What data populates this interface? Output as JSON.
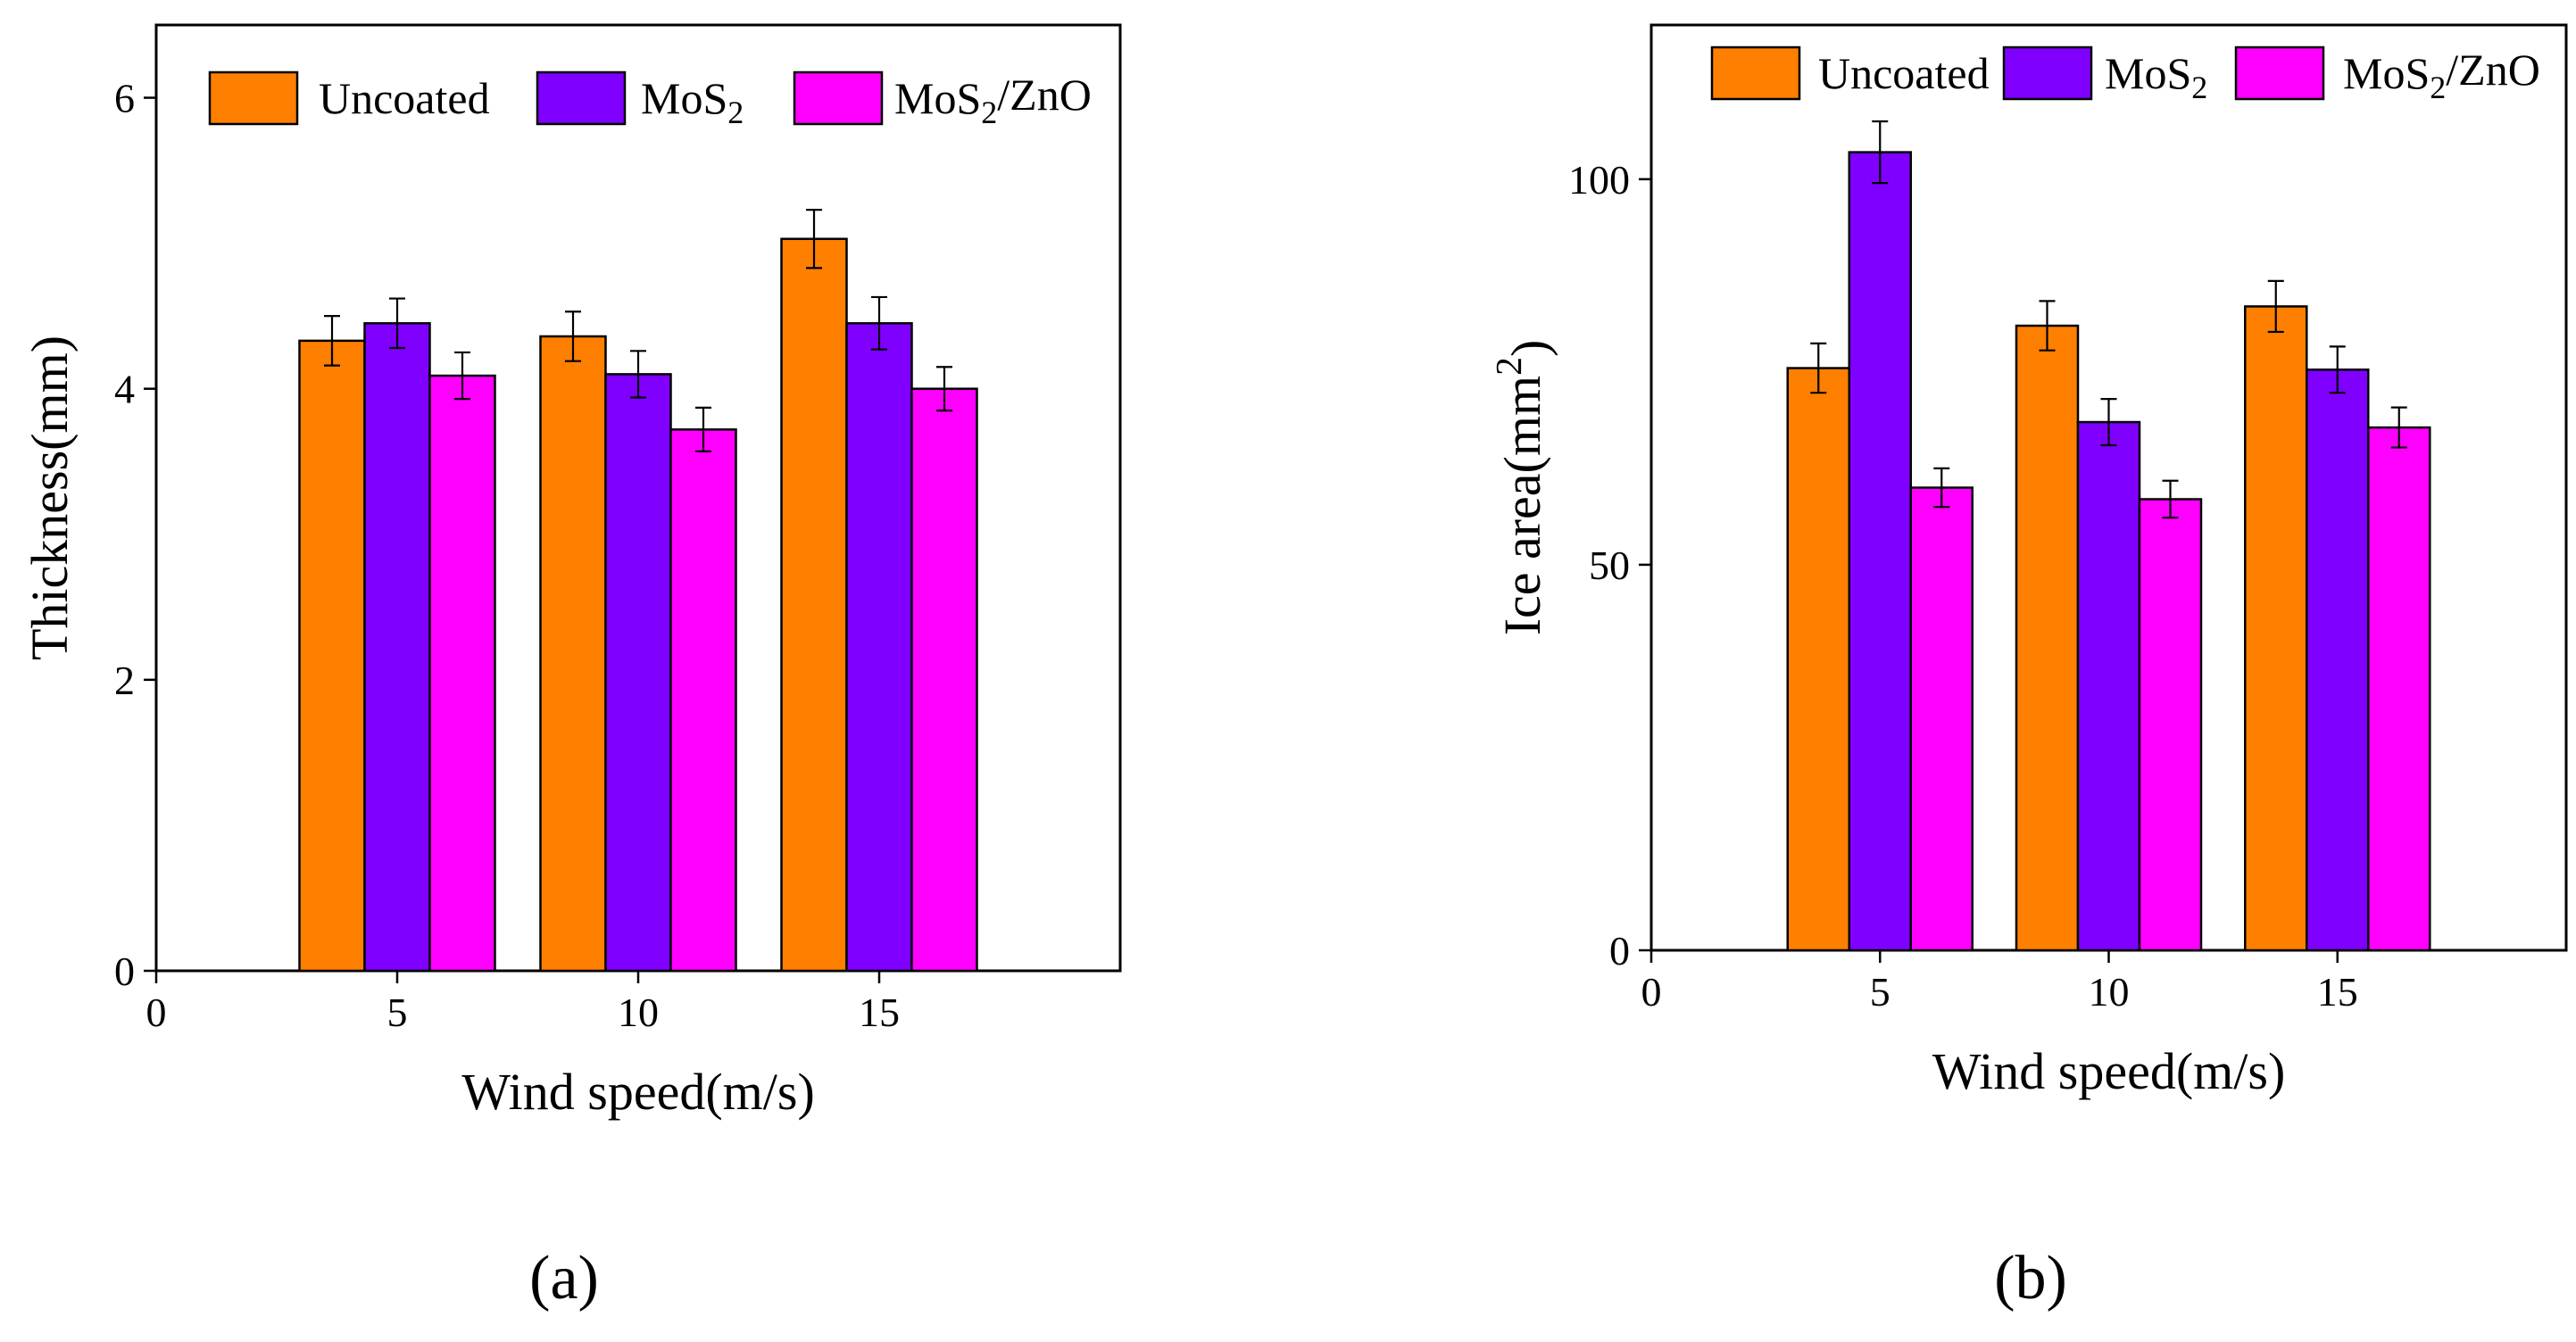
{
  "colors": {
    "Uncoated": "#ff7f00",
    "MoS2": "#8000ff",
    "MoS2/ZnO": "#ff00ff"
  },
  "chart_data": [
    {
      "type": "bar",
      "panel_label": "(a)",
      "categories": [
        "5",
        "10",
        "15"
      ],
      "x": [
        5,
        10,
        15
      ],
      "xlabel": "Wind speed(m/s)",
      "ylabel": "Thickness(mm)",
      "xlim": [
        0,
        20
      ],
      "ylim": [
        0,
        6.5
      ],
      "xticks": [
        "0",
        "5",
        "10",
        "15"
      ],
      "yticks": [
        "0",
        "2",
        "4",
        "6"
      ],
      "legend_position": "top",
      "grid": false,
      "series": [
        {
          "name": "Uncoated",
          "legend_label": "Uncoated",
          "values": [
            4.33,
            4.36,
            5.03
          ],
          "errors": [
            0.17,
            0.17,
            0.2
          ]
        },
        {
          "name": "MoS2",
          "legend_label": "MoS2",
          "values": [
            4.45,
            4.1,
            4.45
          ],
          "errors": [
            0.17,
            0.16,
            0.18
          ]
        },
        {
          "name": "MoS2/ZnO",
          "legend_label": "MoS2/ZnO",
          "values": [
            4.09,
            3.72,
            4.0
          ],
          "errors": [
            0.16,
            0.15,
            0.15
          ]
        }
      ]
    },
    {
      "type": "bar",
      "panel_label": "(b)",
      "categories": [
        "5",
        "10",
        "15"
      ],
      "x": [
        5,
        10,
        15
      ],
      "xlabel": "Wind speed(m/s)",
      "ylabel": "Ice area(mm2)",
      "xlim": [
        0,
        20
      ],
      "ylim": [
        0,
        120
      ],
      "xticks": [
        "0",
        "5",
        "10",
        "15"
      ],
      "yticks": [
        "0",
        "50",
        "100"
      ],
      "legend_position": "top",
      "grid": false,
      "series": [
        {
          "name": "Uncoated",
          "legend_label": "Uncoated",
          "values": [
            75.5,
            81.0,
            83.5
          ],
          "errors": [
            3.2,
            3.2,
            3.3
          ]
        },
        {
          "name": "MoS2",
          "legend_label": "MoS2",
          "values": [
            103.5,
            68.5,
            75.3
          ],
          "errors": [
            4.0,
            3.0,
            3.0
          ]
        },
        {
          "name": "MoS2/ZnO",
          "legend_label": "MoS2/ZnO",
          "values": [
            60.0,
            58.5,
            67.8
          ],
          "errors": [
            2.5,
            2.4,
            2.6
          ]
        }
      ]
    }
  ]
}
